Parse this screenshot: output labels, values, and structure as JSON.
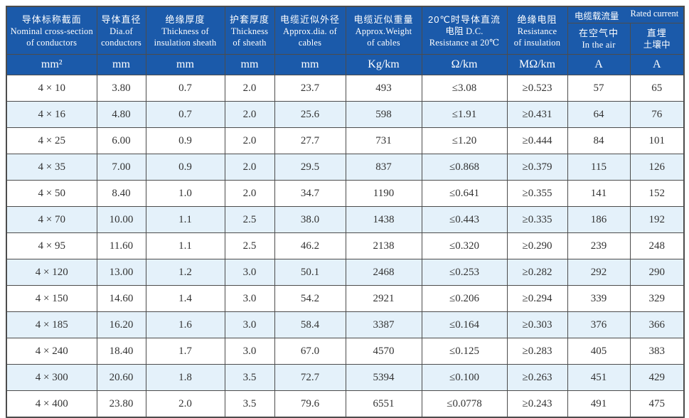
{
  "table": {
    "headers": [
      {
        "lines": [
          "导体标称截面",
          "Nominal cross-section",
          "of conductors"
        ],
        "unit": "mm²"
      },
      {
        "lines": [
          "导体直径",
          "Dia.of",
          "conductors"
        ],
        "unit": "mm"
      },
      {
        "lines": [
          "绝缘厚度",
          "Thickness of",
          "insulation sheath"
        ],
        "unit": "mm"
      },
      {
        "lines": [
          "护套厚度",
          "Thickness",
          "of sheath"
        ],
        "unit": "mm"
      },
      {
        "lines": [
          "电缆近似外径",
          "Approx.dia. of",
          "cables"
        ],
        "unit": "mm"
      },
      {
        "lines": [
          "电缆近似重量",
          "Approx.Weight",
          "of cables"
        ],
        "unit": "Kg/km"
      },
      {
        "lines": [
          "20℃时导体直流",
          "电阻 D.C.",
          "Resistance at 20℃"
        ],
        "unit": "Ω/km"
      },
      {
        "lines": [
          "绝缘电阻",
          "Resistance",
          "of insulation"
        ],
        "unit": "MΩ/km"
      }
    ],
    "current_group": {
      "top_left_zh": "电缆载流量",
      "top_right_en": "Rated current",
      "sub_left_lines": [
        "在空气中",
        "In the air"
      ],
      "sub_right_lines": [
        "直埋",
        "土壤中"
      ],
      "unit_left": "A",
      "unit_right": "A"
    },
    "rows": [
      [
        "4 × 10",
        "3.80",
        "0.7",
        "2.0",
        "23.7",
        "493",
        "≤3.08",
        "≥0.523",
        "57",
        "65"
      ],
      [
        "4 × 16",
        "4.80",
        "0.7",
        "2.0",
        "25.6",
        "598",
        "≤1.91",
        "≥0.431",
        "64",
        "76"
      ],
      [
        "4 × 25",
        "6.00",
        "0.9",
        "2.0",
        "27.7",
        "731",
        "≤1.20",
        "≥0.444",
        "84",
        "101"
      ],
      [
        "4 × 35",
        "7.00",
        "0.9",
        "2.0",
        "29.5",
        "837",
        "≤0.868",
        "≥0.379",
        "115",
        "126"
      ],
      [
        "4 × 50",
        "8.40",
        "1.0",
        "2.0",
        "34.7",
        "1190",
        "≤0.641",
        "≥0.355",
        "141",
        "152"
      ],
      [
        "4 × 70",
        "10.00",
        "1.1",
        "2.5",
        "38.0",
        "1438",
        "≤0.443",
        "≥0.335",
        "186",
        "192"
      ],
      [
        "4 × 95",
        "11.60",
        "1.1",
        "2.5",
        "46.2",
        "2138",
        "≤0.320",
        "≥0.290",
        "239",
        "248"
      ],
      [
        "4 × 120",
        "13.00",
        "1.2",
        "3.0",
        "50.1",
        "2468",
        "≤0.253",
        "≥0.282",
        "292",
        "290"
      ],
      [
        "4 × 150",
        "14.60",
        "1.4",
        "3.0",
        "54.2",
        "2921",
        "≤0.206",
        "≥0.294",
        "339",
        "329"
      ],
      [
        "4 × 185",
        "16.20",
        "1.6",
        "3.0",
        "58.4",
        "3387",
        "≤0.164",
        "≥0.303",
        "376",
        "366"
      ],
      [
        "4 × 240",
        "18.40",
        "1.7",
        "3.0",
        "67.0",
        "4570",
        "≤0.125",
        "≥0.283",
        "405",
        "383"
      ],
      [
        "4 × 300",
        "20.60",
        "1.8",
        "3.5",
        "72.7",
        "5394",
        "≤0.100",
        "≥0.263",
        "451",
        "429"
      ],
      [
        "4 × 400",
        "23.80",
        "2.0",
        "3.5",
        "79.6",
        "6551",
        "≤0.0778",
        "≥0.243",
        "491",
        "475"
      ]
    ]
  },
  "colors": {
    "header_background": "#1b5aaa",
    "header_text": "#ffffff",
    "alt_row_background": "#e4f1fa",
    "grid_border": "#4c4c4c",
    "body_text": "#333333"
  }
}
